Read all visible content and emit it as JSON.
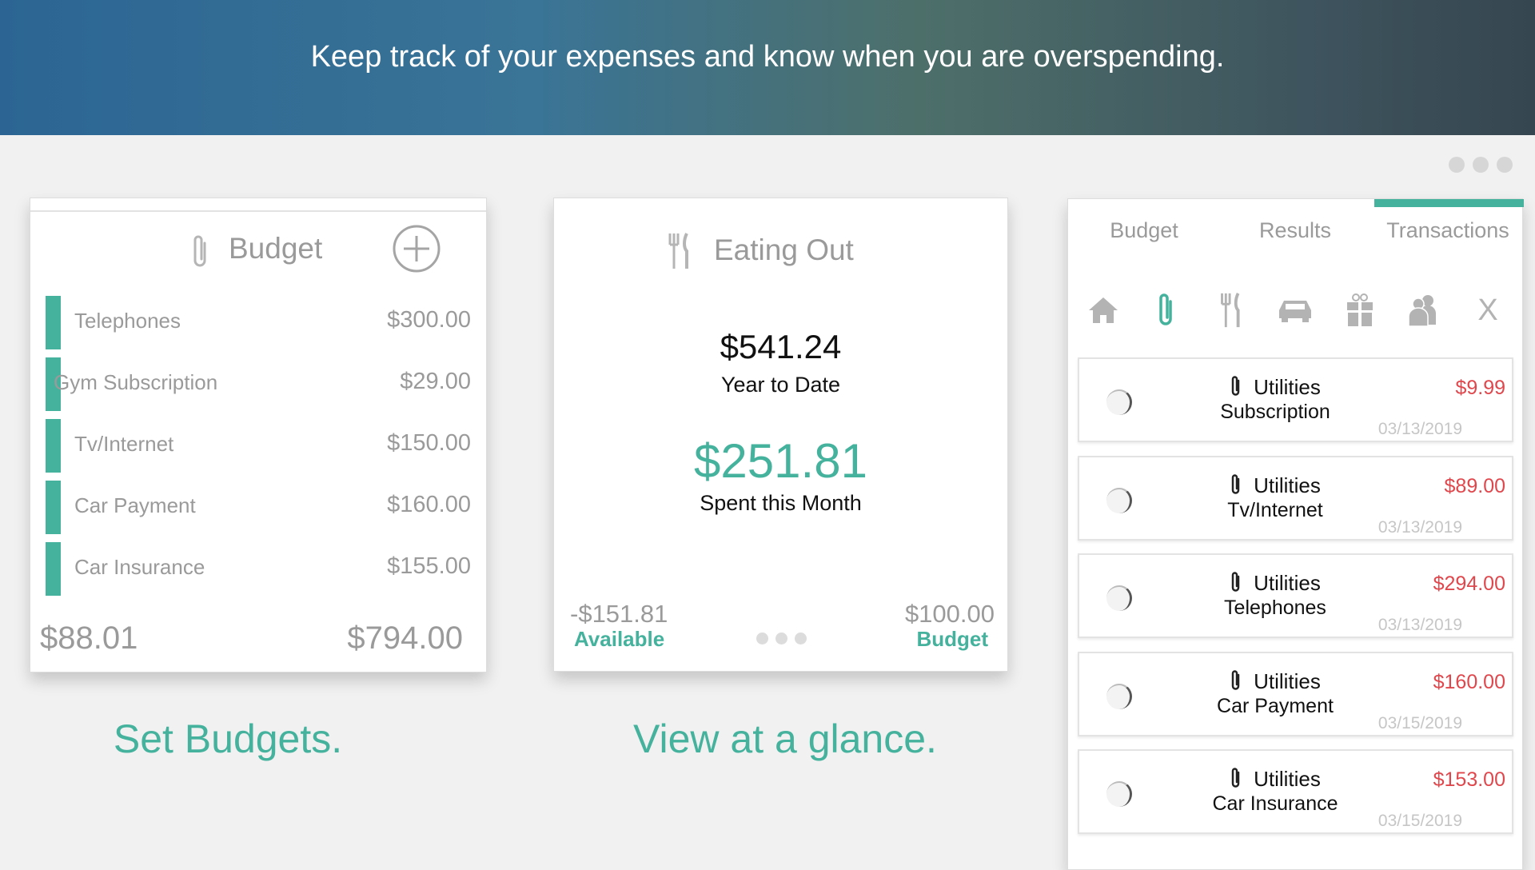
{
  "banner": {
    "text": "Keep track of your expenses and know when you are overspending."
  },
  "window_dots": 3,
  "budget_card": {
    "title": "Budget",
    "icon": "paperclip-icon",
    "add_icon": "plus-circle-icon",
    "accent": "#45b29d",
    "items": [
      {
        "label": "Telephones",
        "amount": "$300.00"
      },
      {
        "label": "Gym Subscription",
        "amount": "$29.00"
      },
      {
        "label": "Tv/Internet",
        "amount": "$150.00"
      },
      {
        "label": "Car Payment",
        "amount": "$160.00"
      },
      {
        "label": "Car Insurance",
        "amount": "$155.00"
      }
    ],
    "footer_left": "$88.01",
    "footer_right": "$794.00"
  },
  "eating_card": {
    "title": "Eating Out",
    "icon": "fork-knife-icon",
    "ytd_value": "$541.24",
    "ytd_label": "Year to Date",
    "month_value": "$251.81",
    "month_label": "Spent this Month",
    "available_value": "-$151.81",
    "available_label": "Available",
    "budget_value": "$100.00",
    "budget_label": "Budget"
  },
  "captions": {
    "left": "Set Budgets.",
    "middle": "View at a glance."
  },
  "transactions_panel": {
    "tabs": [
      {
        "label": "Budget"
      },
      {
        "label": "Results"
      },
      {
        "label": "Transactions",
        "active": true
      }
    ],
    "categories": [
      "home-icon",
      "paperclip-icon",
      "fork-knife-icon",
      "car-icon",
      "gift-icon",
      "people-icon",
      "close-x-icon"
    ],
    "active_category": "paperclip-icon",
    "close_label": "X",
    "items": [
      {
        "category": "Utilities",
        "name": "Subscription",
        "amount": "$9.99",
        "date": "03/13/2019"
      },
      {
        "category": "Utilities",
        "name": "Tv/Internet",
        "amount": "$89.00",
        "date": "03/13/2019"
      },
      {
        "category": "Utilities",
        "name": "Telephones",
        "amount": "$294.00",
        "date": "03/13/2019"
      },
      {
        "category": "Utilities",
        "name": "Car Payment",
        "amount": "$160.00",
        "date": "03/15/2019"
      },
      {
        "category": "Utilities",
        "name": "Car Insurance",
        "amount": "$153.00",
        "date": "03/15/2019"
      }
    ],
    "amount_color": "#e0474c"
  }
}
